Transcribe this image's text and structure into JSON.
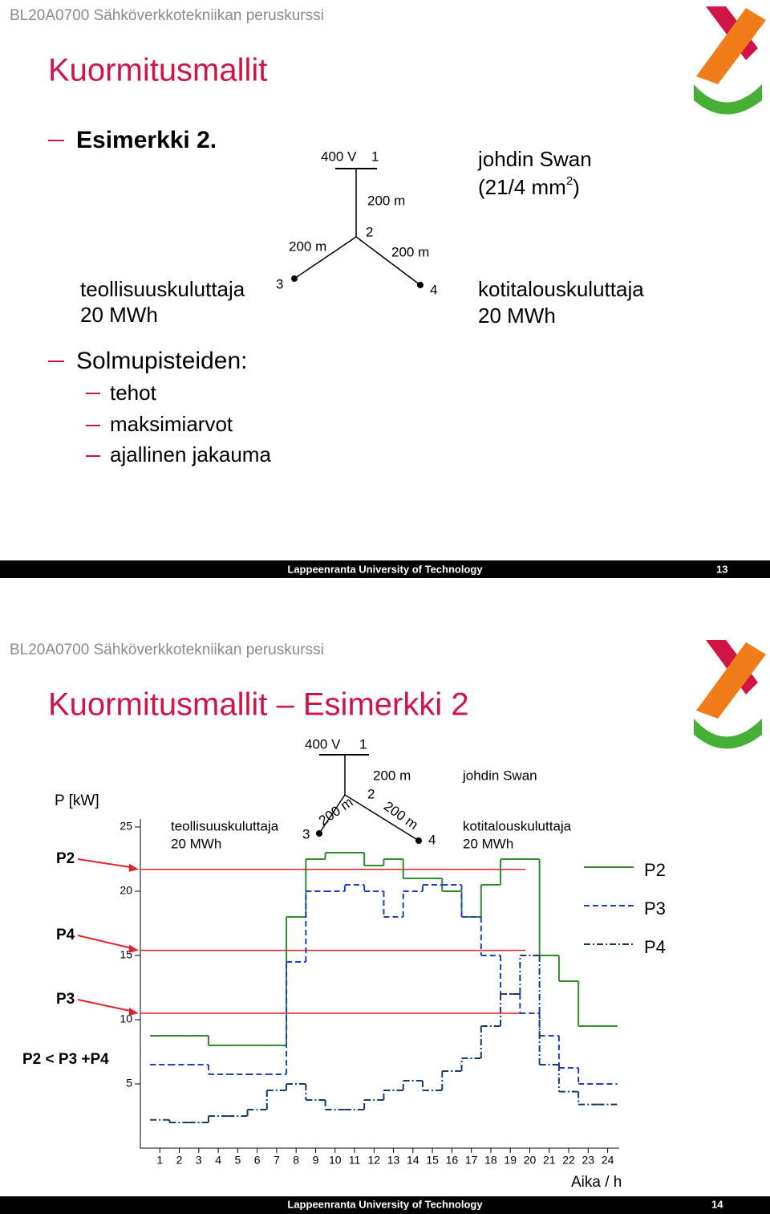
{
  "slides": [
    {
      "header": "BL20A0700 Sähköverkkotekniikan peruskurssi",
      "title": "Kuormitusmallit",
      "bullet": "Esimerkki 2.",
      "diagram": {
        "voltage": "400 V",
        "n1": "1",
        "n2": "2",
        "n3": "3",
        "n4": "4",
        "len12": "200 m",
        "len23": "200 m",
        "len24": "200 m",
        "cable": "johdin Swan",
        "cable_section": [
          "(21/4 mm",
          "2",
          ")"
        ],
        "left_load": "teollisuuskuluttaja",
        "left_energy": "20 MWh",
        "right_load": "kotitalouskuluttaja",
        "right_energy": "20 MWh"
      },
      "subheading": "Solmupisteiden:",
      "items": [
        "tehot",
        "maksimiarvot",
        "ajallinen jakauma"
      ],
      "footer": "Lappeenranta University of Technology",
      "page": "13"
    },
    {
      "header": "BL20A0700 Sähköverkkotekniikan peruskurssi",
      "title": "Kuormitusmallit – Esimerkki 2",
      "diagram": {
        "voltage": "400 V",
        "n1": "1",
        "n2": "2",
        "n3": "3",
        "n4": "4",
        "len12": "200 m",
        "len23": "200 m",
        "len24": "200 m",
        "cable": "johdin Swan",
        "left_load": "teollisuuskuluttaja",
        "left_energy": "20 MWh",
        "right_load": "kotitalouskuluttaja",
        "right_energy": "20 MWh"
      },
      "footer": "Lappeenranta University of Technology",
      "page": "14"
    }
  ],
  "chart_data": {
    "type": "step",
    "y_label": "P  [kW]",
    "x_label": "Aika / h",
    "x": [
      1,
      2,
      3,
      4,
      5,
      6,
      7,
      8,
      9,
      10,
      11,
      12,
      13,
      14,
      15,
      16,
      17,
      18,
      19,
      20,
      21,
      22,
      23,
      24
    ],
    "xlim": [
      0,
      24.8
    ],
    "ylim": [
      0,
      26
    ],
    "yticks": [
      5,
      10,
      15,
      20,
      25
    ],
    "series": [
      {
        "name": "P2",
        "color": "#2e8b2e",
        "dash": "solid",
        "values": [
          8.75,
          8.75,
          8.75,
          8,
          8,
          8,
          8,
          18,
          22.5,
          23,
          23,
          22,
          22.5,
          21,
          21,
          20,
          18,
          20.5,
          22.5,
          22.5,
          15,
          13,
          9.5,
          9.5
        ]
      },
      {
        "name": "P3",
        "color": "#1f3fbf",
        "dash": "dashed",
        "values": [
          6.5,
          6.5,
          6.5,
          5.75,
          5.75,
          5.75,
          5.75,
          14.5,
          20,
          20,
          20.5,
          20,
          18,
          20,
          20.5,
          20.5,
          18,
          15,
          12,
          10.5,
          8.75,
          6.25,
          5,
          5
        ]
      },
      {
        "name": "P4",
        "color": "#1a3a6a",
        "dash": "dashdot",
        "values": [
          2.2,
          2,
          2,
          2.5,
          2.5,
          3,
          4.5,
          5,
          3.75,
          3,
          3,
          3.75,
          4.5,
          5.25,
          4.5,
          6,
          7,
          9.5,
          12,
          15,
          6.5,
          4.4,
          3.4,
          3.4
        ]
      }
    ],
    "reference_lines": [
      {
        "label": "P2",
        "value": 21.7
      },
      {
        "label": "P4",
        "value": 15.4
      },
      {
        "label": "P3",
        "value": 10.5
      }
    ],
    "reference_color": "#e0202a",
    "annotation": "P2 < P3 +P4"
  }
}
